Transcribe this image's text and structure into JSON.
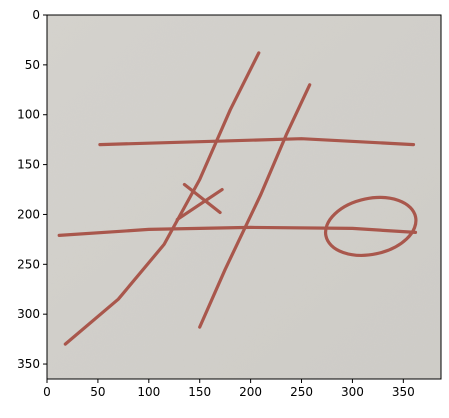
{
  "axes": {
    "xlim": [
      0,
      387
    ],
    "ylim": [
      365,
      0
    ],
    "x_ticks": [
      {
        "value": 0,
        "label": "0"
      },
      {
        "value": 50,
        "label": "50"
      },
      {
        "value": 100,
        "label": "100"
      },
      {
        "value": 150,
        "label": "150"
      },
      {
        "value": 200,
        "label": "200"
      },
      {
        "value": 250,
        "label": "250"
      },
      {
        "value": 300,
        "label": "300"
      },
      {
        "value": 350,
        "label": "350"
      }
    ],
    "y_ticks": [
      {
        "value": 0,
        "label": "0"
      },
      {
        "value": 50,
        "label": "50"
      },
      {
        "value": 100,
        "label": "100"
      },
      {
        "value": 150,
        "label": "150"
      },
      {
        "value": 200,
        "label": "200"
      },
      {
        "value": 250,
        "label": "250"
      },
      {
        "value": 300,
        "label": "300"
      },
      {
        "value": 350,
        "label": "350"
      }
    ]
  },
  "colors": {
    "paper": "#cfcdc8",
    "paper_light": "#d8d6d1",
    "ink": "#a9574c",
    "axis": "#000000"
  },
  "board": {
    "strokes": [
      {
        "name": "left-vertical-line",
        "points": [
          [
            208,
            38
          ],
          [
            180,
            95
          ],
          [
            150,
            165
          ],
          [
            115,
            230
          ],
          [
            70,
            285
          ],
          [
            18,
            330
          ]
        ]
      },
      {
        "name": "right-vertical-line",
        "points": [
          [
            258,
            70
          ],
          [
            235,
            120
          ],
          [
            210,
            180
          ],
          [
            175,
            255
          ],
          [
            150,
            313
          ]
        ]
      },
      {
        "name": "top-horizontal-line",
        "points": [
          [
            52,
            130
          ],
          [
            150,
            127
          ],
          [
            250,
            124
          ],
          [
            360,
            130
          ]
        ]
      },
      {
        "name": "bottom-horizontal-line",
        "points": [
          [
            12,
            221
          ],
          [
            100,
            215
          ],
          [
            200,
            213
          ],
          [
            300,
            214
          ],
          [
            362,
            218
          ]
        ]
      }
    ],
    "marks": [
      {
        "name": "x-mark",
        "symbol": "X",
        "strokes": [
          [
            [
              135,
              170
            ],
            [
              170,
              198
            ]
          ],
          [
            [
              128,
              205
            ],
            [
              172,
              175
            ]
          ]
        ]
      },
      {
        "name": "o-mark",
        "symbol": "O",
        "center": [
          318,
          212
        ],
        "radii": [
          45,
          28
        ]
      }
    ]
  }
}
